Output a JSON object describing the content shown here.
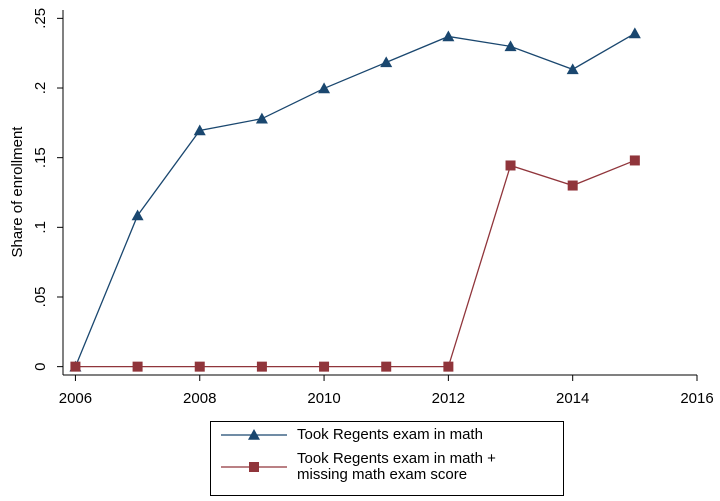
{
  "chart_data": {
    "type": "line",
    "y_label": "Share of enrollment",
    "x": [
      2006,
      2007,
      2008,
      2009,
      2010,
      2011,
      2012,
      2013,
      2014,
      2015
    ],
    "series": [
      {
        "name": "Took Regents exam in math",
        "color": "#1a476f",
        "marker": "triangle",
        "values": [
          0,
          0.1085,
          0.1695,
          0.178,
          0.1997,
          0.2184,
          0.237,
          0.2299,
          0.2134,
          0.2392
        ]
      },
      {
        "name": "Took Regents exam in math +\nmissing math exam score",
        "color": "#90353b",
        "marker": "square",
        "values": [
          0,
          0,
          0,
          0,
          0,
          0,
          0,
          0.1444,
          0.13,
          0.148
        ]
      }
    ],
    "xlim": [
      2005.8,
      2016
    ],
    "xticks": [
      2006,
      2008,
      2010,
      2012,
      2014,
      2016
    ],
    "ylim": [
      -0.006,
      0.256
    ],
    "yticks": [
      0,
      {
        "value": 0.05,
        "label": ".05"
      },
      {
        "value": 0.1,
        "label": ".1"
      },
      {
        "value": 0.15,
        "label": ".15"
      },
      {
        "value": 0.2,
        "label": ".2"
      },
      {
        "value": 0.25,
        "label": ".25"
      }
    ],
    "grid": false
  }
}
